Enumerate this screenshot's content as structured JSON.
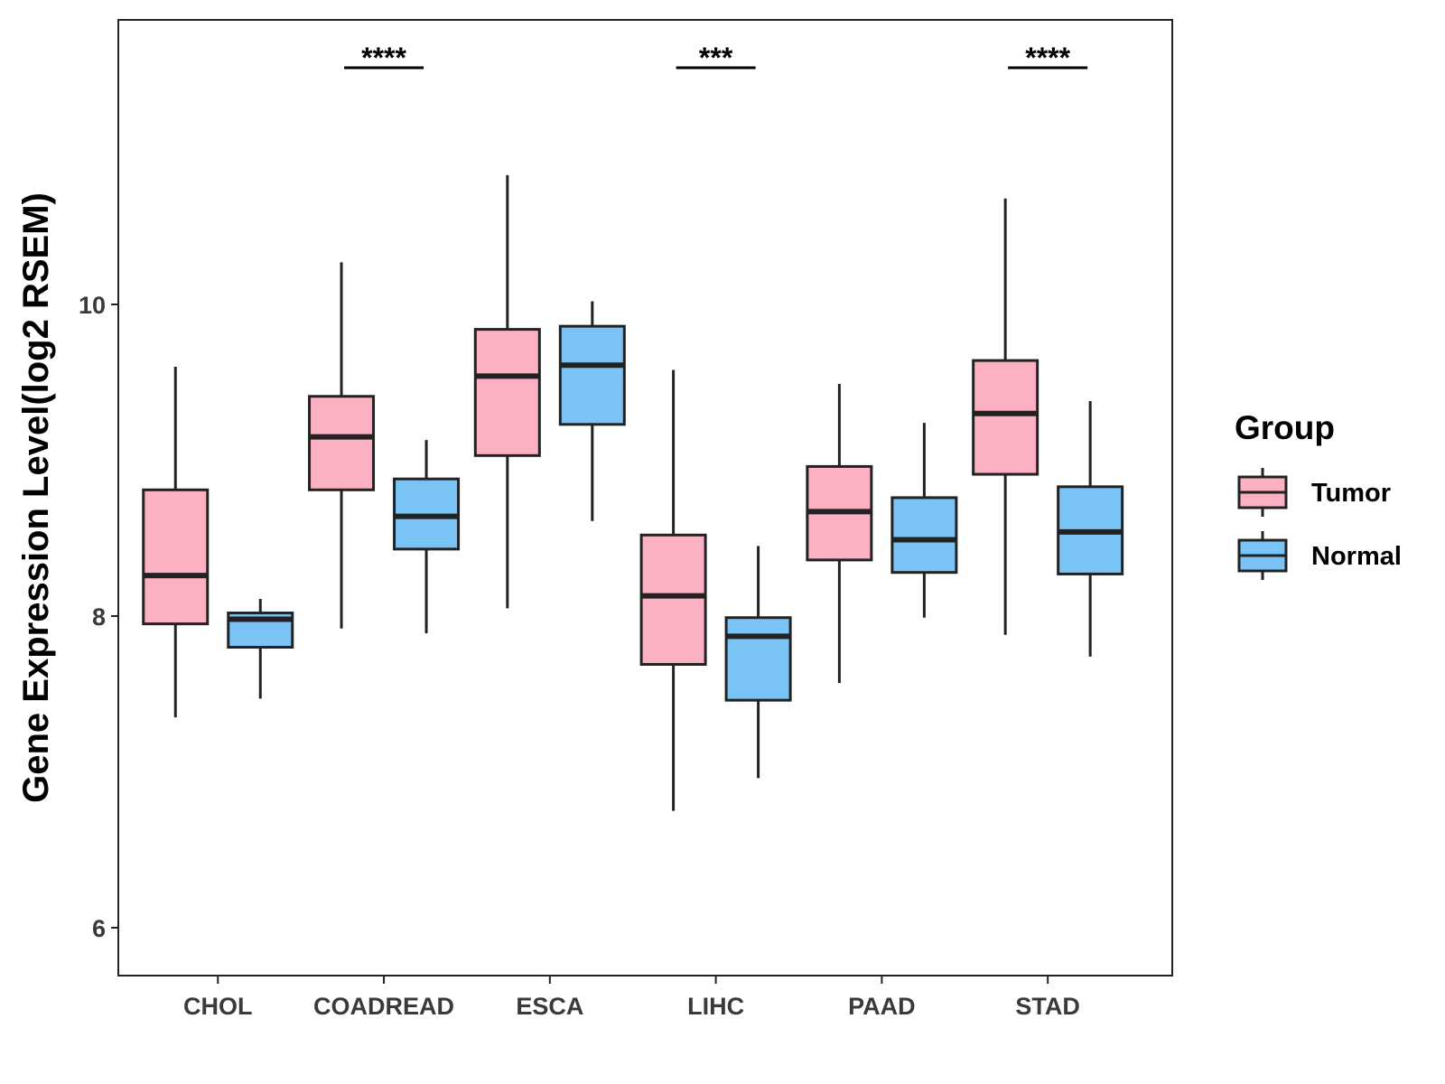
{
  "chart_data": {
    "type": "boxplot",
    "title": "",
    "xlabel": "",
    "ylabel": "Gene Expression Level(log2 RSEM)",
    "ylim": [
      5.7,
      11.85
    ],
    "yticks": [
      6,
      8,
      10
    ],
    "grid": false,
    "categories": [
      "CHOL",
      "COADREAD",
      "ESCA",
      "LIHC",
      "PAAD",
      "STAD"
    ],
    "legend": {
      "title": "Group",
      "position": "right"
    },
    "series": [
      {
        "name": "Tumor",
        "color": "#fbb1c2",
        "boxes": [
          {
            "min": 7.35,
            "q1": 7.95,
            "median": 8.26,
            "q3": 8.81,
            "max": 9.6
          },
          {
            "min": 7.92,
            "q1": 8.81,
            "median": 9.15,
            "q3": 9.41,
            "max": 10.27
          },
          {
            "min": 8.05,
            "q1": 9.03,
            "median": 9.54,
            "q3": 9.84,
            "max": 10.83
          },
          {
            "min": 6.75,
            "q1": 7.69,
            "median": 8.13,
            "q3": 8.52,
            "max": 9.58
          },
          {
            "min": 7.57,
            "q1": 8.36,
            "median": 8.67,
            "q3": 8.96,
            "max": 9.49
          },
          {
            "min": 7.88,
            "q1": 8.91,
            "median": 9.3,
            "q3": 9.64,
            "max": 10.68
          }
        ]
      },
      {
        "name": "Normal",
        "color": "#79c3f7",
        "boxes": [
          {
            "min": 7.47,
            "q1": 7.8,
            "median": 7.98,
            "q3": 8.02,
            "max": 8.11
          },
          {
            "min": 7.89,
            "q1": 8.43,
            "median": 8.64,
            "q3": 8.88,
            "max": 9.13
          },
          {
            "min": 8.61,
            "q1": 9.23,
            "median": 9.61,
            "q3": 9.86,
            "max": 10.02
          },
          {
            "min": 6.96,
            "q1": 7.46,
            "median": 7.87,
            "q3": 7.99,
            "max": 8.45
          },
          {
            "min": 7.99,
            "q1": 8.28,
            "median": 8.49,
            "q3": 8.76,
            "max": 9.24
          },
          {
            "min": 7.74,
            "q1": 8.27,
            "median": 8.54,
            "q3": 8.83,
            "max": 9.38
          }
        ]
      }
    ],
    "annotations": [
      {
        "category": "CHOL",
        "text": ""
      },
      {
        "category": "COADREAD",
        "text": "****"
      },
      {
        "category": "ESCA",
        "text": ""
      },
      {
        "category": "LIHC",
        "text": "***"
      },
      {
        "category": "PAAD",
        "text": ""
      },
      {
        "category": "STAD",
        "text": "****"
      }
    ]
  }
}
